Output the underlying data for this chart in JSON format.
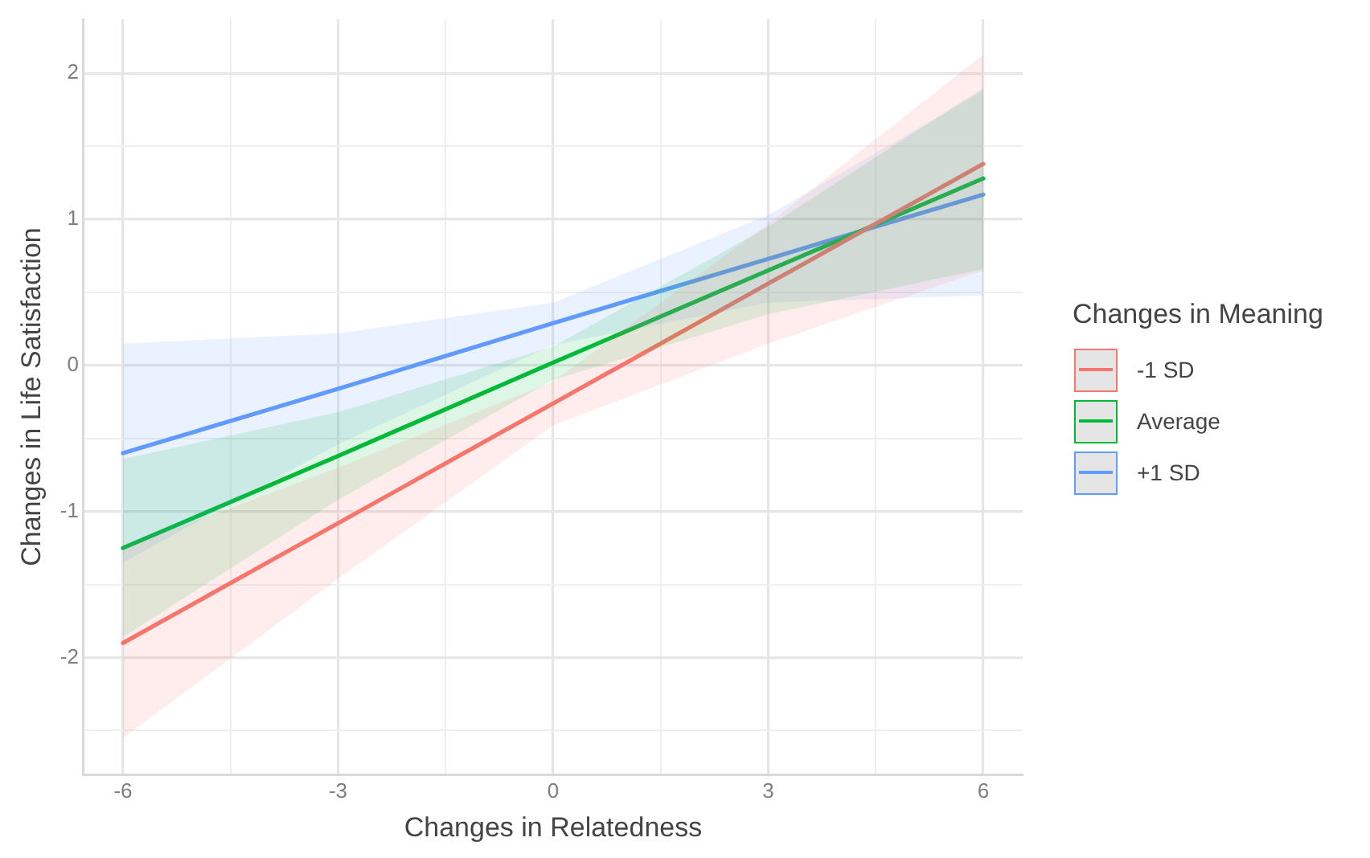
{
  "chart_data": {
    "type": "line",
    "xlabel": "Changes in Relatedness",
    "ylabel": "Changes in Life Satisfaction",
    "legend_title": "Changes in Meaning",
    "legend": "right",
    "grid": true,
    "marker": "none",
    "line_style": "solid",
    "xlim": [
      -6.55,
      6.55
    ],
    "xticks": [
      -6,
      {
        "value": -4.5,
        "label": null
      },
      -3,
      {
        "value": -1.5,
        "label": null
      },
      0,
      {
        "value": 1.5,
        "label": null
      },
      3,
      {
        "value": 4.5,
        "label": null
      },
      6
    ],
    "ylim": [
      -2.8,
      2.37
    ],
    "yticks": [
      {
        "value": -2.5,
        "label": null
      },
      -2,
      {
        "value": -1.5,
        "label": null
      },
      -1,
      {
        "value": -0.5,
        "label": null
      },
      0,
      {
        "value": 0.5,
        "label": null
      },
      1,
      {
        "value": 1.5,
        "label": null
      },
      2
    ],
    "x": [
      -6,
      -3,
      0,
      3,
      6
    ],
    "series": [
      {
        "name": "-1 SD",
        "color": "#f8766d",
        "values": [
          -1.9,
          -1.08,
          -0.26,
          0.56,
          1.38
        ],
        "lower": [
          -2.55,
          -1.46,
          -0.41,
          0.15,
          0.65
        ],
        "upper": [
          -1.25,
          -0.7,
          -0.11,
          0.97,
          2.13
        ]
      },
      {
        "name": "Average",
        "color": "#00ba38",
        "values": [
          -1.25,
          -0.62,
          0.02,
          0.65,
          1.28
        ],
        "lower": [
          -1.86,
          -0.92,
          -0.1,
          0.35,
          0.66
        ],
        "upper": [
          -0.64,
          -0.32,
          0.13,
          0.95,
          1.9
        ]
      },
      {
        "name": "+1 SD",
        "color": "#619cff",
        "values": [
          -0.6,
          -0.16,
          0.29,
          0.73,
          1.17
        ],
        "lower": [
          -1.35,
          -0.54,
          0.14,
          0.43,
          0.48
        ],
        "upper": [
          0.15,
          0.22,
          0.43,
          1.03,
          1.88
        ]
      }
    ]
  }
}
